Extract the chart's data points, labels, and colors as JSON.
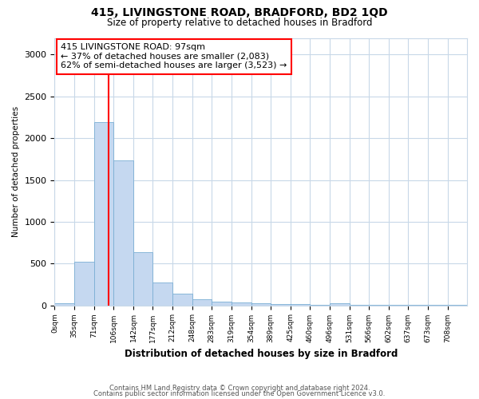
{
  "title": "415, LIVINGSTONE ROAD, BRADFORD, BD2 1QD",
  "subtitle": "Size of property relative to detached houses in Bradford",
  "xlabel": "Distribution of detached houses by size in Bradford",
  "ylabel": "Number of detached properties",
  "footnote1": "Contains HM Land Registry data © Crown copyright and database right 2024.",
  "footnote2": "Contains public sector information licensed under the Open Government Licence v3.0.",
  "annotation_line1": "415 LIVINGSTONE ROAD: 97sqm",
  "annotation_line2": "← 37% of detached houses are smaller (2,083)",
  "annotation_line3": "62% of semi-detached houses are larger (3,523) →",
  "bar_color": "#c5d8f0",
  "bar_edge_color": "#7bafd4",
  "red_line_x": 97,
  "bin_edges": [
    0,
    35,
    71,
    106,
    142,
    177,
    212,
    248,
    283,
    319,
    354,
    389,
    425,
    460,
    496,
    531,
    566,
    602,
    637,
    673,
    708,
    743
  ],
  "bin_labels": [
    "0sqm",
    "35sqm",
    "71sqm",
    "106sqm",
    "142sqm",
    "177sqm",
    "212sqm",
    "248sqm",
    "283sqm",
    "319sqm",
    "354sqm",
    "389sqm",
    "425sqm",
    "460sqm",
    "496sqm",
    "531sqm",
    "566sqm",
    "602sqm",
    "637sqm",
    "673sqm",
    "708sqm"
  ],
  "bar_heights": [
    28,
    520,
    2190,
    1730,
    640,
    270,
    135,
    70,
    45,
    35,
    22,
    18,
    12,
    8,
    20,
    4,
    4,
    3,
    3,
    3,
    3
  ],
  "ylim": [
    0,
    3200
  ],
  "yticks": [
    0,
    500,
    1000,
    1500,
    2000,
    2500,
    3000
  ],
  "background_color": "#ffffff",
  "grid_color": "#c8d8e8"
}
